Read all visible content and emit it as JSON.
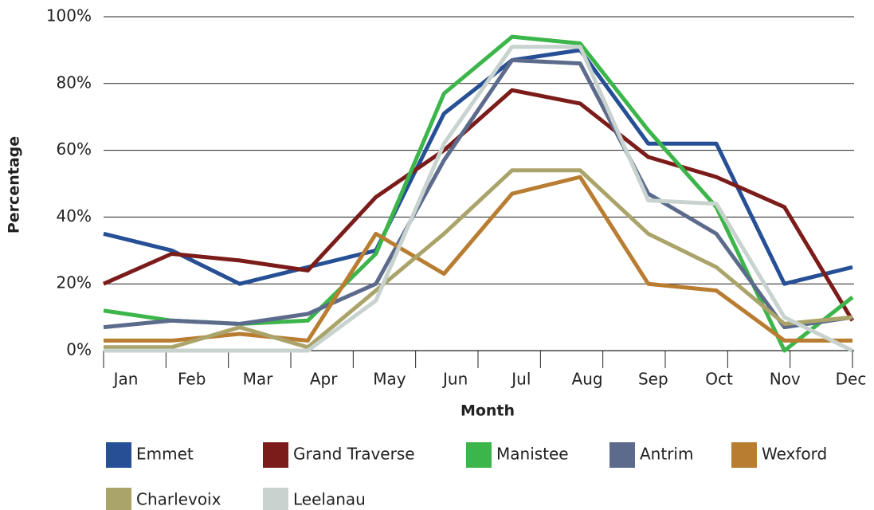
{
  "chart_data": {
    "type": "line",
    "y_label": "Percentage",
    "x_label": "Month",
    "categories": [
      "Jan",
      "Feb",
      "Mar",
      "Apr",
      "May",
      "Jun",
      "Jul",
      "Aug",
      "Sep",
      "Oct",
      "Nov",
      "Dec"
    ],
    "series": [
      {
        "name": "Emmet",
        "color": "#264f96",
        "values": [
          35,
          30,
          20,
          25,
          30,
          71,
          87,
          90,
          62,
          62,
          20,
          25
        ]
      },
      {
        "name": "Grand Traverse",
        "color": "#7b1c1a",
        "values": [
          20,
          29,
          27,
          24,
          46,
          60,
          78,
          74,
          58,
          52,
          43,
          9
        ]
      },
      {
        "name": "Manistee",
        "color": "#3cb54a",
        "values": [
          12,
          9,
          8,
          9,
          29,
          77,
          94,
          92,
          66,
          43,
          0,
          16
        ]
      },
      {
        "name": "Antrim",
        "color": "#5c6b8c",
        "values": [
          7,
          9,
          8,
          11,
          20,
          57,
          87,
          86,
          47,
          35,
          7,
          10
        ]
      },
      {
        "name": "Wexford",
        "color": "#b97d32",
        "values": [
          3,
          3,
          5,
          3,
          35,
          23,
          47,
          52,
          20,
          18,
          3,
          3
        ]
      },
      {
        "name": "Charlevoix",
        "color": "#aaa46a",
        "values": [
          1,
          1,
          7,
          1,
          18,
          35,
          54,
          54,
          35,
          25,
          8,
          10
        ]
      },
      {
        "name": "Leelanau",
        "color": "#c8d3cf",
        "values": [
          0,
          0,
          0,
          0,
          15,
          62,
          91,
          91,
          45,
          44,
          10,
          0
        ]
      }
    ],
    "ylim": [
      0,
      100
    ],
    "yticks": [
      {
        "value": 0,
        "label": "0%"
      },
      {
        "value": 20,
        "label": "20%"
      },
      {
        "value": 40,
        "label": "40%"
      },
      {
        "value": 60,
        "label": "60%"
      },
      {
        "value": 80,
        "label": "80%"
      },
      {
        "value": 100,
        "label": "100%"
      }
    ],
    "grid": true
  }
}
